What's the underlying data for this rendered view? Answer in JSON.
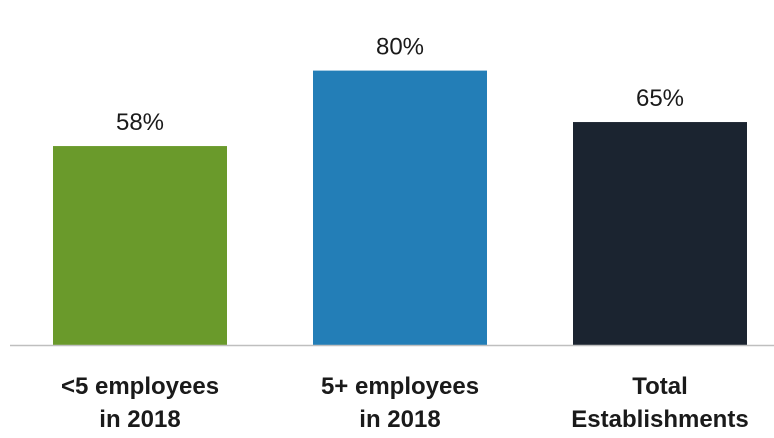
{
  "chart_data": {
    "type": "bar",
    "title": "",
    "xlabel": "",
    "ylabel": "",
    "ylim": [
      0,
      100
    ],
    "grid": false,
    "legend": "none",
    "categories": [
      [
        "<5 employees",
        "in 2018"
      ],
      [
        "5+ employees",
        "in 2018"
      ],
      [
        "Total",
        "Establishments"
      ]
    ],
    "values": [
      58,
      80,
      65
    ],
    "data_labels": [
      "58%",
      "80%",
      "65%"
    ],
    "colors": [
      "#6a9a2b",
      "#237eb7",
      "#1b2430"
    ],
    "axis_color": "#bfbfbf"
  }
}
